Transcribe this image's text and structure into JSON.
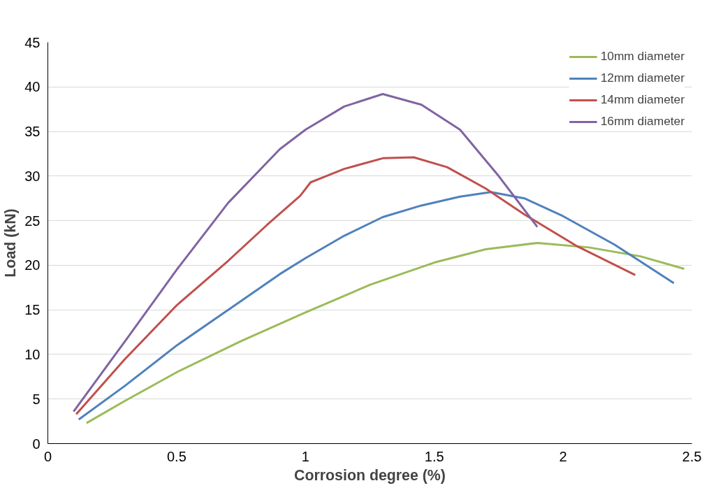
{
  "chart_data": {
    "type": "line",
    "xlabel": "Corrosion degree (%)",
    "ylabel": "Load (kN)",
    "xlim": [
      0,
      2.5
    ],
    "ylim": [
      0,
      45
    ],
    "xticks": [
      0,
      {
        "value": 0.5,
        "label": "0.5"
      },
      1,
      {
        "value": 1.5,
        "label": "1.5"
      },
      2,
      {
        "value": 2.5,
        "label": "2.5"
      }
    ],
    "yticks": [
      0,
      5,
      10,
      15,
      20,
      25,
      30,
      35,
      40,
      45
    ],
    "grid": "y",
    "legend": "top right",
    "marker": "none",
    "line_style": "solid",
    "series": [
      {
        "name": "10mm diameter",
        "color": "#9bbb59",
        "x": [
          0.15,
          0.3,
          0.5,
          0.75,
          1.0,
          1.25,
          1.5,
          1.7,
          1.9,
          2.1,
          2.3,
          2.47
        ],
        "values": [
          2.3,
          4.8,
          8,
          11.5,
          14.7,
          17.8,
          20.3,
          21.8,
          22.5,
          22,
          21,
          19.6
        ]
      },
      {
        "name": "12mm diameter",
        "color": "#4f81bd",
        "x": [
          0.12,
          0.3,
          0.5,
          0.75,
          0.9,
          1.0,
          1.15,
          1.3,
          1.45,
          1.6,
          1.72,
          1.85,
          2.0,
          2.2,
          2.43
        ],
        "values": [
          2.7,
          6.5,
          11,
          16,
          19,
          20.8,
          23.3,
          25.4,
          26.7,
          27.7,
          28.2,
          27.5,
          25.5,
          22.3,
          18
        ]
      },
      {
        "name": "14mm diameter",
        "color": "#c0504d",
        "x": [
          0.11,
          0.3,
          0.5,
          0.7,
          0.85,
          0.98,
          1.02,
          1.15,
          1.3,
          1.42,
          1.55,
          1.7,
          1.85,
          2.05,
          2.28
        ],
        "values": [
          3.3,
          9.5,
          15.5,
          20.5,
          24.5,
          27.8,
          29.3,
          30.8,
          32,
          32.1,
          31,
          28.6,
          25.7,
          22.2,
          18.9
        ]
      },
      {
        "name": "16mm diameter",
        "color": "#8064a2",
        "x": [
          0.1,
          0.3,
          0.5,
          0.7,
          0.9,
          1.0,
          1.15,
          1.3,
          1.45,
          1.6,
          1.75,
          1.9
        ],
        "values": [
          3.6,
          11.5,
          19.5,
          27,
          33,
          35.2,
          37.8,
          39.2,
          38,
          35.2,
          30,
          24.3
        ]
      }
    ]
  }
}
